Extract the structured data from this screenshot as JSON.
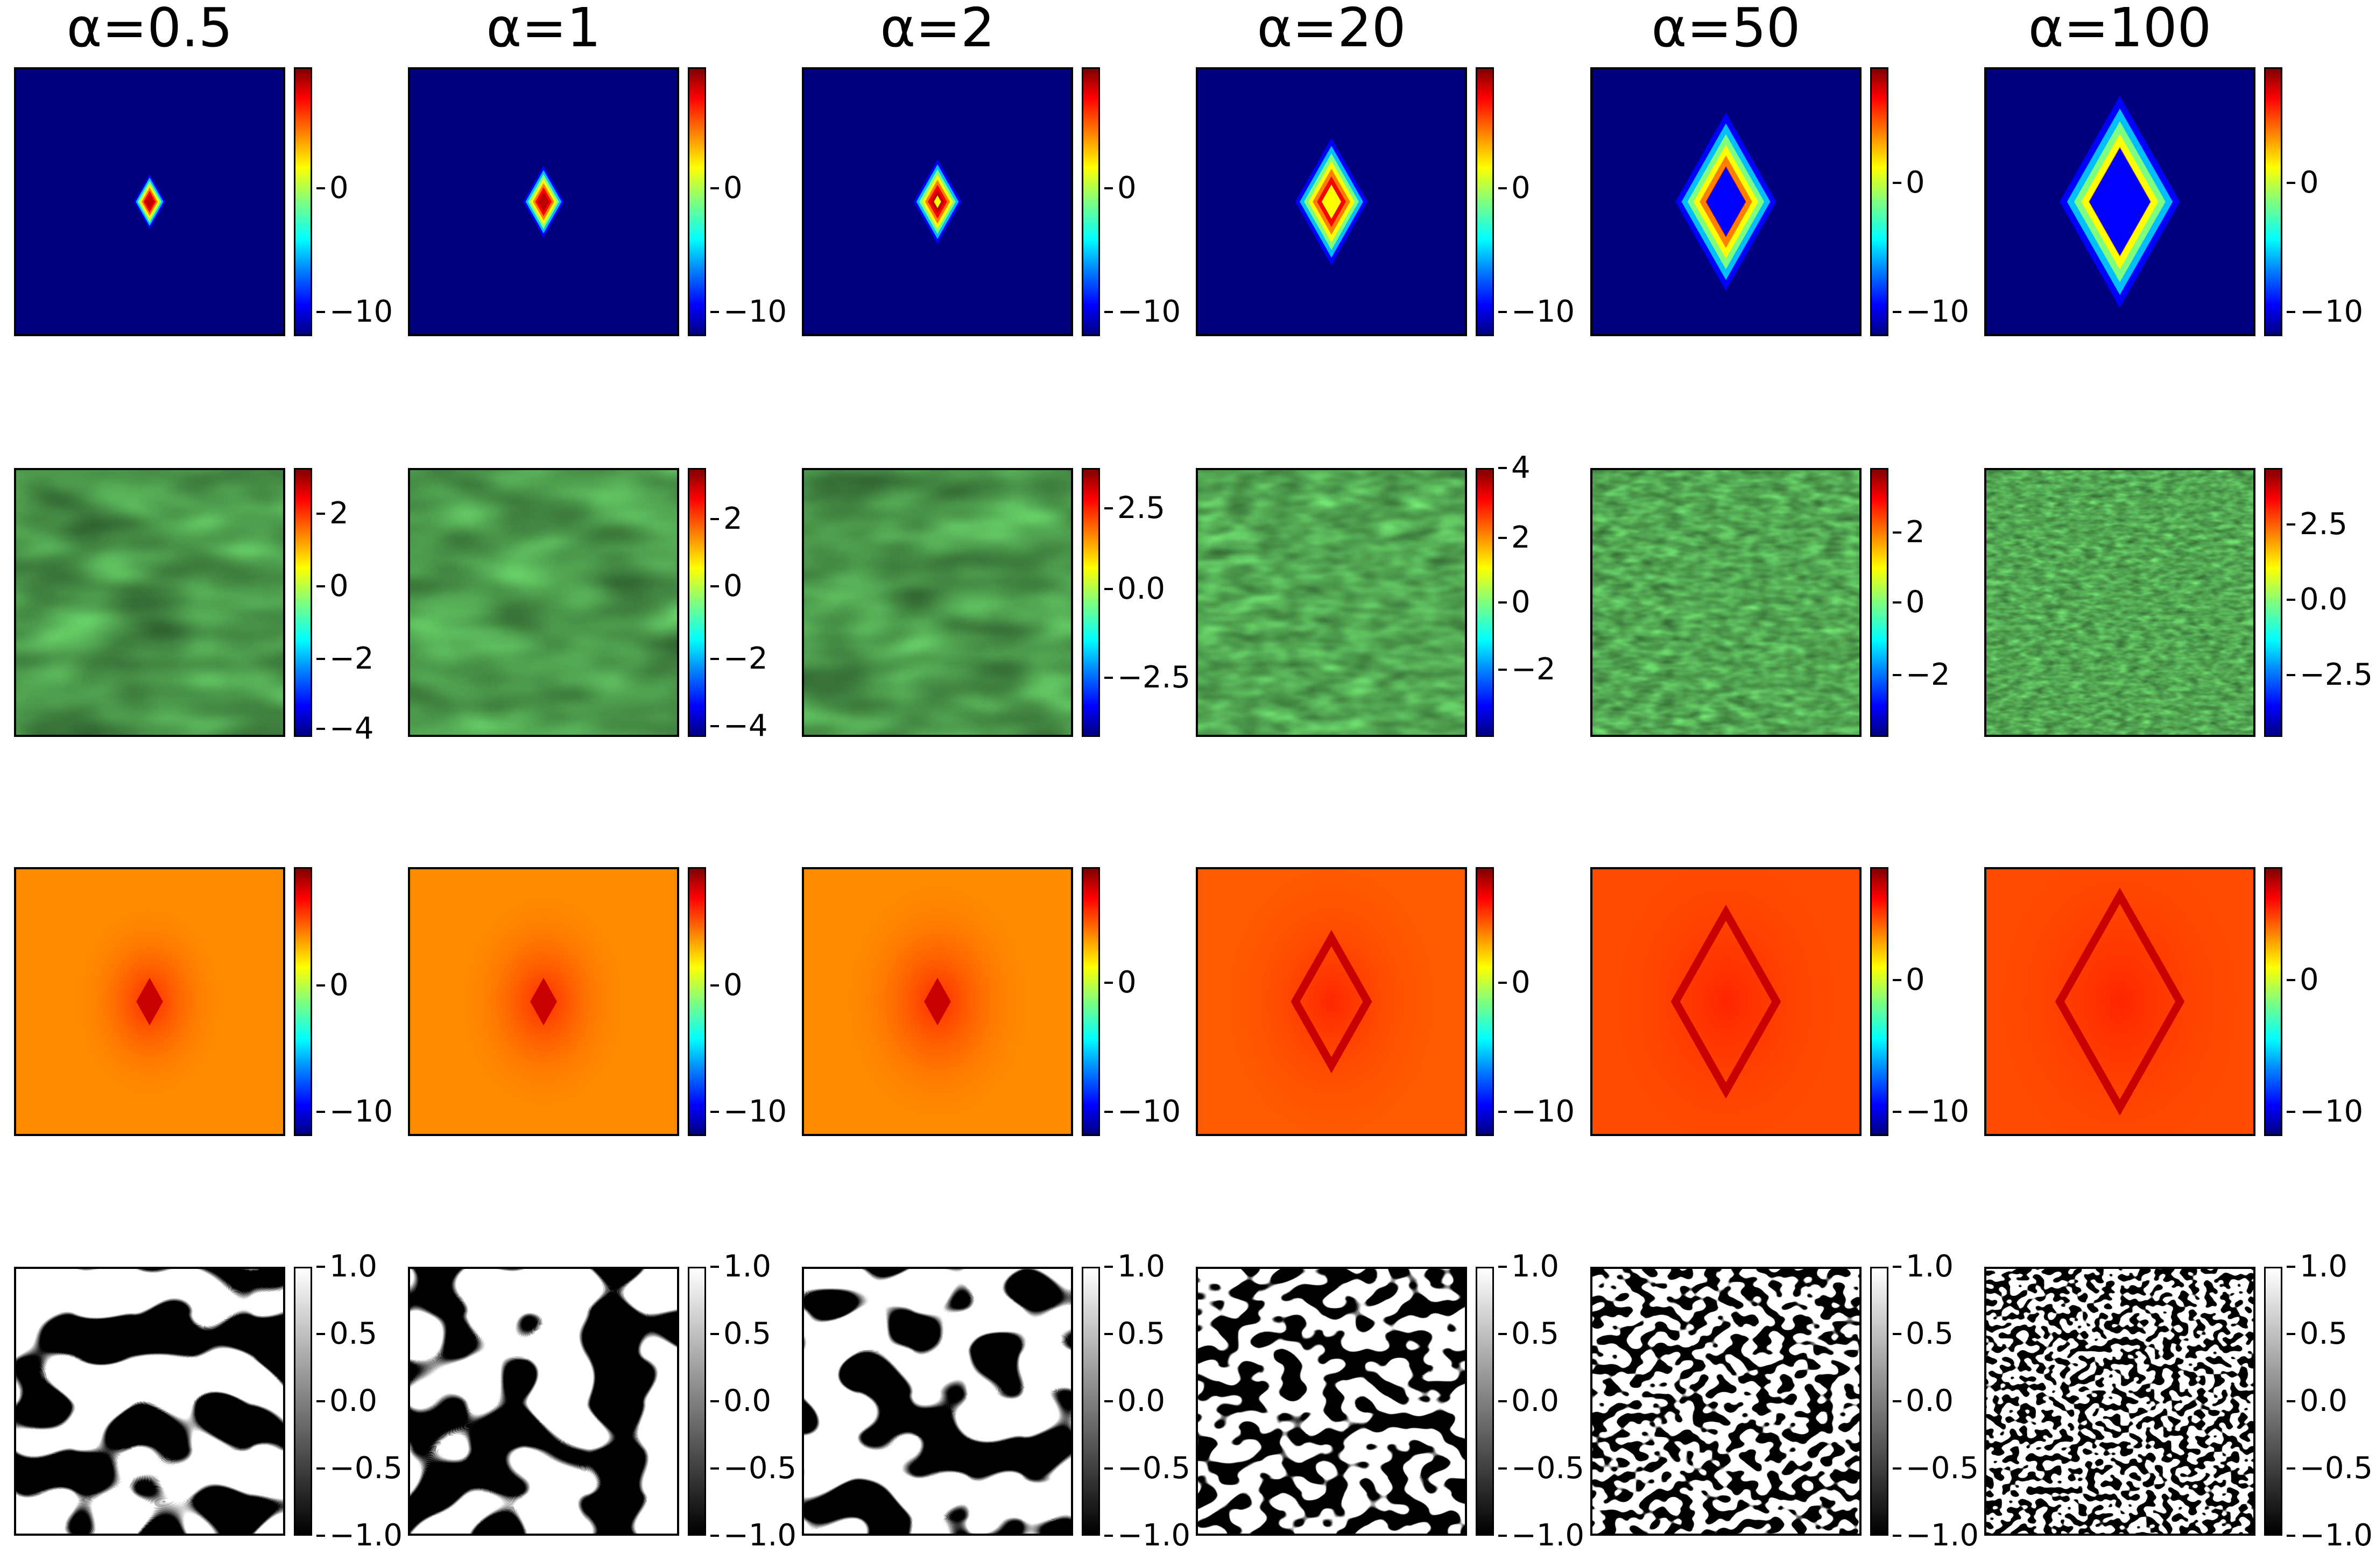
{
  "columns": [
    {
      "title": "α=0.5"
    },
    {
      "title": "α=1"
    },
    {
      "title": "α=2"
    },
    {
      "title": "α=20"
    },
    {
      "title": "α=50"
    },
    {
      "title": "α=100"
    }
  ],
  "rows": [
    {
      "name": "row-1",
      "colormap": "jet",
      "colorbars": [
        {
          "ticks": [
            "0",
            "−10"
          ]
        },
        {
          "ticks": [
            "0",
            "−10"
          ]
        },
        {
          "ticks": [
            "0",
            "−10"
          ]
        },
        {
          "ticks": [
            "0",
            "−10"
          ]
        },
        {
          "ticks": [
            "0",
            "−10"
          ]
        },
        {
          "ticks": [
            "0",
            "−10"
          ]
        }
      ]
    },
    {
      "name": "row-2",
      "colormap": "jet",
      "colorbars": [
        {
          "ticks": [
            "2",
            "0",
            "−2",
            "−4"
          ]
        },
        {
          "ticks": [
            "2",
            "0",
            "−2",
            "−4"
          ]
        },
        {
          "ticks": [
            "2.5",
            "0.0",
            "−2.5"
          ]
        },
        {
          "ticks": [
            "4",
            "2",
            "0",
            "−2"
          ]
        },
        {
          "ticks": [
            "2",
            "0",
            "−2"
          ]
        },
        {
          "ticks": [
            "2.5",
            "0.0",
            "−2.5"
          ]
        }
      ]
    },
    {
      "name": "row-3",
      "colormap": "jet",
      "colorbars": [
        {
          "ticks": [
            "0",
            "−10"
          ]
        },
        {
          "ticks": [
            "0",
            "−10"
          ]
        },
        {
          "ticks": [
            "0",
            "−10"
          ]
        },
        {
          "ticks": [
            "0",
            "−10"
          ]
        },
        {
          "ticks": [
            "0",
            "−10"
          ]
        },
        {
          "ticks": [
            "0",
            "−10"
          ]
        }
      ]
    },
    {
      "name": "row-4",
      "colormap": "gray",
      "colorbars": [
        {
          "ticks": [
            "1.0",
            "0.5",
            "0.0",
            "−0.5",
            "−1.0"
          ]
        },
        {
          "ticks": [
            "1.0",
            "0.5",
            "0.0",
            "−0.5",
            "−1.0"
          ]
        },
        {
          "ticks": [
            "1.0",
            "0.5",
            "0.0",
            "−0.5",
            "−1.0"
          ]
        },
        {
          "ticks": [
            "1.0",
            "0.5",
            "0.0",
            "−0.5",
            "−1.0"
          ]
        },
        {
          "ticks": [
            "1.0",
            "0.5",
            "0.0",
            "−0.5",
            "−1.0"
          ]
        },
        {
          "ticks": [
            "1.0",
            "0.5",
            "0.0",
            "−0.5",
            "−1.0"
          ]
        }
      ]
    }
  ]
}
